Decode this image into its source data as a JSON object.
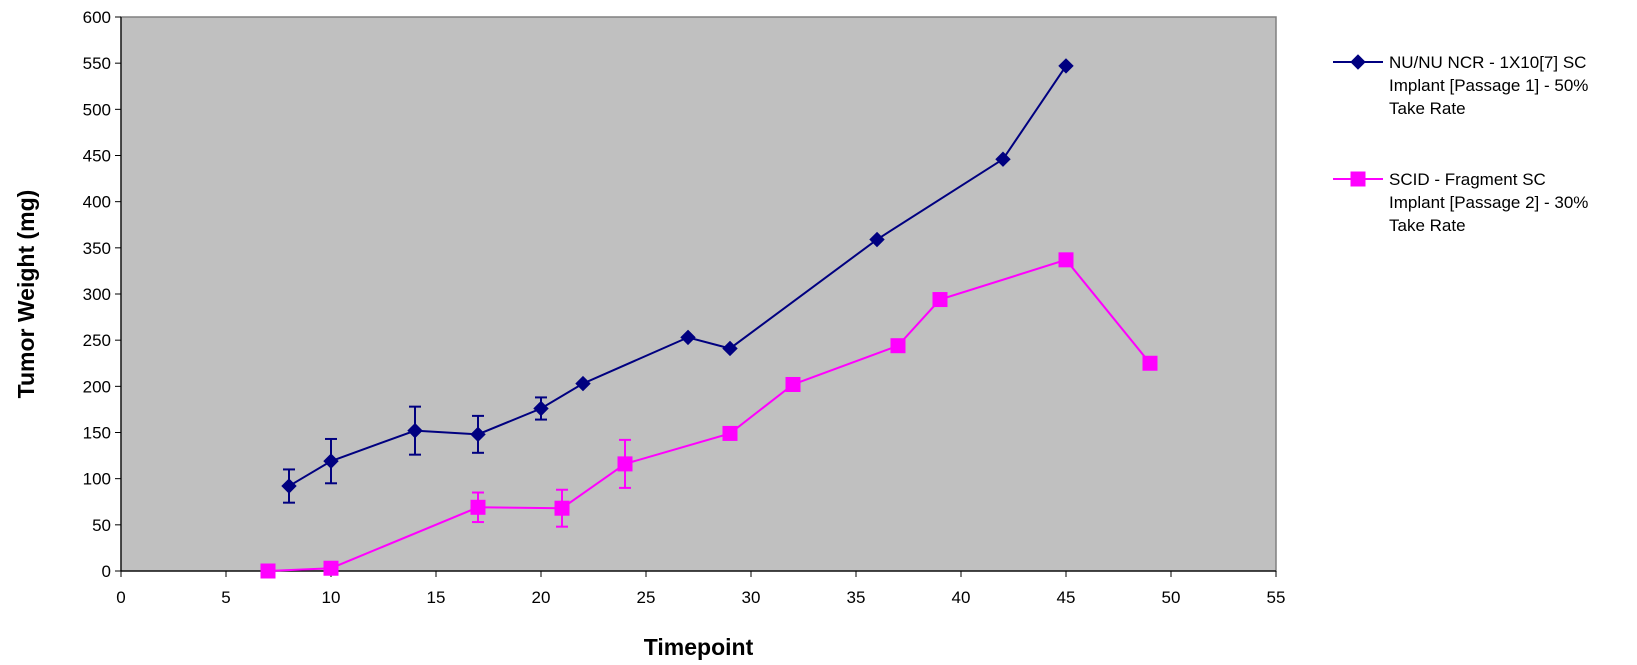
{
  "chart_data": {
    "type": "line",
    "title": "",
    "xlabel": "Timepoint",
    "ylabel": "Tumor Weight (mg)",
    "xlim": [
      0,
      55
    ],
    "ylim": [
      0,
      600
    ],
    "xticks": [
      "0",
      "5",
      "10",
      "15",
      "20",
      "25",
      "30",
      "35",
      "40",
      "45",
      "50",
      "55"
    ],
    "yticks": [
      "0",
      "50",
      "100",
      "150",
      "200",
      "250",
      "300",
      "350",
      "400",
      "450",
      "500",
      "550",
      "600"
    ],
    "plot_background": "#c0c0c0",
    "grid": false,
    "legend_position": "right",
    "series": [
      {
        "name": "NU/NU NCR - 1X10[7] SC Implant [Passage 1] - 50% Take Rate",
        "name_lines": [
          "NU/NU NCR - 1X10[7] SC",
          "Implant [Passage 1] - 50%",
          "Take Rate"
        ],
        "color": "#000080",
        "marker": "diamond",
        "x": [
          8,
          10,
          14,
          17,
          20,
          22,
          27,
          29,
          36,
          42,
          45
        ],
        "y": [
          92,
          119,
          152,
          148,
          176,
          203,
          253,
          241,
          359,
          446,
          547
        ],
        "err": [
          18,
          24,
          26,
          20,
          12,
          0,
          0,
          0,
          0,
          0,
          0
        ]
      },
      {
        "name": "SCID - Fragment SC Implant [Passage 2] - 30% Take Rate",
        "name_lines": [
          "SCID - Fragment SC",
          "Implant [Passage 2] - 30%",
          "Take Rate"
        ],
        "color": "#ff00ff",
        "marker": "square",
        "x": [
          7,
          10,
          17,
          21,
          24,
          29,
          32,
          37,
          39,
          45,
          49
        ],
        "y": [
          0,
          3,
          69,
          68,
          116,
          149,
          202,
          244,
          294,
          337,
          225
        ],
        "err": [
          0,
          0,
          16,
          20,
          26,
          0,
          0,
          0,
          0,
          0,
          0
        ]
      }
    ]
  }
}
